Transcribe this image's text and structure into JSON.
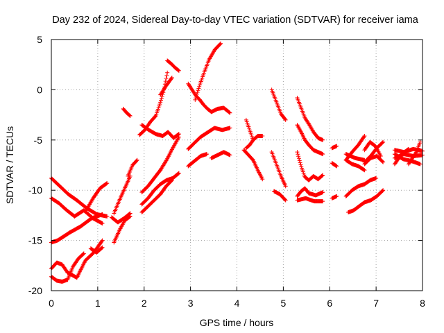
{
  "chart_data": {
    "type": "scatter",
    "title": "Day 232 of 2024, Sidereal Day-to-day VTEC variation (SDTVAR) for receiver iama",
    "xlabel": "GPS time / hours",
    "ylabel": "SDTVAR / TECUs",
    "xlim": [
      0,
      8
    ],
    "ylim": [
      -20,
      5
    ],
    "xticks": [
      0,
      1,
      2,
      3,
      4,
      5,
      6,
      7,
      8
    ],
    "yticks": [
      -20,
      -15,
      -10,
      -5,
      0,
      5
    ],
    "xtick_labels": [
      "0",
      "1",
      "2",
      "3",
      "4",
      "5",
      "6",
      "7",
      "8"
    ],
    "ytick_labels": [
      "-20",
      "-15",
      "-10",
      "-5",
      "0",
      "5"
    ],
    "grid": true,
    "marker": "+",
    "color": "#ff0000",
    "segments": [
      {
        "x0": 0.0,
        "x1": 0.55,
        "y": [
          -8.8,
          -9.6,
          -10.4,
          -11.0
        ]
      },
      {
        "x0": 0.55,
        "x1": 1.2,
        "y": [
          -11.0,
          -11.8,
          -12.4,
          -12.6
        ]
      },
      {
        "x0": 0.0,
        "x1": 0.5,
        "y": [
          -10.8,
          -11.3,
          -12.0,
          -12.6
        ]
      },
      {
        "x0": 0.5,
        "x1": 1.1,
        "y": [
          -12.6,
          -12.0,
          -12.8,
          -13.3
        ]
      },
      {
        "x0": 0.0,
        "x1": 0.4,
        "y": [
          -15.2,
          -15.0,
          -14.6,
          -14.2
        ]
      },
      {
        "x0": 0.4,
        "x1": 1.1,
        "y": [
          -14.2,
          -13.6,
          -12.8,
          -12.4
        ]
      },
      {
        "x0": 0.75,
        "x1": 1.2,
        "y": [
          -12.0,
          -10.8,
          -9.8,
          -9.3
        ]
      },
      {
        "x0": 0.0,
        "x1": 0.35,
        "y": [
          -17.8,
          -17.2,
          -17.4,
          -18.2
        ]
      },
      {
        "x0": 0.35,
        "x1": 0.55,
        "y": [
          -18.2,
          -18.7
        ]
      },
      {
        "x0": 0.0,
        "x1": 0.35,
        "y": [
          -18.6,
          -19.0,
          -19.1,
          -18.9
        ]
      },
      {
        "x0": 0.35,
        "x1": 0.7,
        "y": [
          -18.9,
          -17.6,
          -16.8,
          -16.3
        ]
      },
      {
        "x0": 0.55,
        "x1": 1.1,
        "y": [
          -18.7,
          -17.0,
          -16.2,
          -15.0
        ]
      },
      {
        "x0": 0.85,
        "x1": 1.1,
        "y": [
          -15.8,
          -16.2,
          -15.7
        ]
      },
      {
        "x0": 1.55,
        "x1": 1.7,
        "y": [
          -1.9,
          -2.3,
          -2.6
        ]
      },
      {
        "x0": 1.35,
        "x1": 1.7,
        "y": [
          -12.3,
          -11.0,
          -9.8,
          -8.6
        ]
      },
      {
        "x0": 1.65,
        "x1": 1.85,
        "y": [
          -8.6,
          -7.5,
          -7.0
        ]
      },
      {
        "x0": 1.3,
        "x1": 1.7,
        "y": [
          -12.7,
          -13.2,
          -12.8,
          -12.3
        ]
      },
      {
        "x0": 1.35,
        "x1": 1.7,
        "y": [
          -15.2,
          -14.0,
          -13.0,
          -12.6
        ]
      },
      {
        "x0": 1.9,
        "x1": 2.25,
        "y": [
          -4.5,
          -4.0,
          -3.2,
          -2.6
        ]
      },
      {
        "x0": 2.25,
        "x1": 2.5,
        "y": [
          -2.6,
          -1.5,
          -0.2,
          1.7
        ]
      },
      {
        "x0": 2.35,
        "x1": 2.6,
        "y": [
          -0.5,
          0.4,
          1.2
        ]
      },
      {
        "x0": 2.5,
        "x1": 2.75,
        "y": [
          2.9,
          2.6,
          2.2,
          1.9
        ]
      },
      {
        "x0": 1.95,
        "x1": 2.4,
        "y": [
          -3.5,
          -4.0,
          -4.4,
          -4.6
        ]
      },
      {
        "x0": 2.4,
        "x1": 2.75,
        "y": [
          -4.6,
          -4.2,
          -4.8,
          -4.4
        ]
      },
      {
        "x0": 1.95,
        "x1": 2.35,
        "y": [
          -10.2,
          -9.6,
          -8.8,
          -8.0
        ]
      },
      {
        "x0": 2.35,
        "x1": 2.75,
        "y": [
          -8.0,
          -7.0,
          -5.8,
          -4.7
        ]
      },
      {
        "x0": 1.95,
        "x1": 2.35,
        "y": [
          -11.4,
          -10.8,
          -10.0,
          -9.4
        ]
      },
      {
        "x0": 2.35,
        "x1": 2.75,
        "y": [
          -9.4,
          -9.0,
          -8.8,
          -8.3
        ]
      },
      {
        "x0": 1.95,
        "x1": 2.35,
        "y": [
          -12.2,
          -11.6,
          -11.0,
          -10.4
        ]
      },
      {
        "x0": 2.35,
        "x1": 2.6,
        "y": [
          -10.4,
          -9.6,
          -9.0
        ]
      },
      {
        "x0": 2.95,
        "x1": 3.2,
        "y": [
          0.6,
          0.0,
          -0.6,
          -1.0
        ]
      },
      {
        "x0": 3.2,
        "x1": 3.45,
        "y": [
          -1.0,
          -1.5,
          -1.9,
          -2.2
        ]
      },
      {
        "x0": 3.1,
        "x1": 3.4,
        "y": [
          -1.0,
          0.5,
          1.8,
          3.0
        ]
      },
      {
        "x0": 3.4,
        "x1": 3.65,
        "y": [
          3.0,
          4.0,
          4.6
        ]
      },
      {
        "x0": 3.45,
        "x1": 3.85,
        "y": [
          -2.2,
          -1.9,
          -1.8,
          -2.3
        ]
      },
      {
        "x0": 2.95,
        "x1": 3.35,
        "y": [
          -5.9,
          -5.3,
          -4.7,
          -4.3
        ]
      },
      {
        "x0": 3.35,
        "x1": 3.85,
        "y": [
          -4.3,
          -3.8,
          -4.0,
          -3.8
        ]
      },
      {
        "x0": 2.95,
        "x1": 3.35,
        "y": [
          -7.6,
          -7.1,
          -6.6,
          -6.4
        ]
      },
      {
        "x0": 3.45,
        "x1": 3.85,
        "y": [
          -6.8,
          -6.5,
          -6.2,
          -6.5
        ]
      },
      {
        "x0": 4.2,
        "x1": 4.35,
        "y": [
          -3.0,
          -4.0,
          -5.0
        ]
      },
      {
        "x0": 4.2,
        "x1": 4.35,
        "y": [
          -5.8,
          -5.5,
          -5.0
        ]
      },
      {
        "x0": 4.35,
        "x1": 4.55,
        "y": [
          -5.0,
          -4.6,
          -4.6
        ]
      },
      {
        "x0": 4.15,
        "x1": 4.35,
        "y": [
          -6.0,
          -6.5,
          -7.0
        ]
      },
      {
        "x0": 4.35,
        "x1": 4.55,
        "y": [
          -7.0,
          -8.0,
          -8.9
        ]
      },
      {
        "x0": 4.75,
        "x1": 5.05,
        "y": [
          0.0,
          -1.2,
          -2.4,
          -3.0
        ]
      },
      {
        "x0": 4.75,
        "x1": 5.05,
        "y": [
          -6.2,
          -7.4,
          -8.6,
          -9.6
        ]
      },
      {
        "x0": 4.8,
        "x1": 5.05,
        "y": [
          -10.1,
          -10.4,
          -11.0
        ]
      },
      {
        "x0": 5.3,
        "x1": 5.55,
        "y": [
          -0.8,
          -1.8,
          -2.8,
          -3.4
        ]
      },
      {
        "x0": 5.55,
        "x1": 5.85,
        "y": [
          -3.4,
          -4.2,
          -4.8,
          -5.0
        ]
      },
      {
        "x0": 5.3,
        "x1": 5.55,
        "y": [
          -3.5,
          -4.2,
          -5.0,
          -5.5
        ]
      },
      {
        "x0": 5.55,
        "x1": 5.85,
        "y": [
          -5.5,
          -6.0,
          -6.2,
          -6.4
        ]
      },
      {
        "x0": 5.3,
        "x1": 5.55,
        "y": [
          -6.2,
          -7.6,
          -8.7,
          -9.0
        ]
      },
      {
        "x0": 5.55,
        "x1": 5.85,
        "y": [
          -9.0,
          -8.6,
          -8.9,
          -8.5
        ]
      },
      {
        "x0": 5.3,
        "x1": 5.55,
        "y": [
          -10.6,
          -10.1,
          -9.8,
          -10.3
        ]
      },
      {
        "x0": 5.55,
        "x1": 5.85,
        "y": [
          -10.3,
          -10.5,
          -10.2
        ]
      },
      {
        "x0": 5.3,
        "x1": 5.85,
        "y": [
          -11.0,
          -10.8,
          -11.1,
          -11.1
        ]
      },
      {
        "x0": 6.05,
        "x1": 6.15,
        "y": [
          -5.8,
          -5.6
        ]
      },
      {
        "x0": 6.05,
        "x1": 6.15,
        "y": [
          -7.3,
          -7.6
        ]
      },
      {
        "x0": 6.05,
        "x1": 6.15,
        "y": [
          -10.8,
          -10.6
        ]
      },
      {
        "x0": 6.35,
        "x1": 6.75,
        "y": [
          -7.0,
          -6.2,
          -5.5,
          -4.6
        ]
      },
      {
        "x0": 6.35,
        "x1": 6.75,
        "y": [
          -6.4,
          -6.8,
          -7.0
        ]
      },
      {
        "x0": 6.75,
        "x1": 7.1,
        "y": [
          -6.0,
          -5.2,
          -5.6,
          -6.6
        ]
      },
      {
        "x0": 6.75,
        "x1": 7.15,
        "y": [
          -7.2,
          -6.6,
          -5.8,
          -5.2
        ]
      },
      {
        "x0": 6.35,
        "x1": 6.75,
        "y": [
          -7.0,
          -7.4,
          -7.6,
          -8.0
        ]
      },
      {
        "x0": 6.75,
        "x1": 7.15,
        "y": [
          -7.4,
          -6.8,
          -6.6,
          -7.2
        ]
      },
      {
        "x0": 6.35,
        "x1": 6.75,
        "y": [
          -10.6,
          -10.0,
          -9.6,
          -9.4
        ]
      },
      {
        "x0": 6.75,
        "x1": 7.0,
        "y": [
          -9.4,
          -9.0,
          -8.8
        ]
      },
      {
        "x0": 6.4,
        "x1": 6.75,
        "y": [
          -12.2,
          -12.0,
          -11.6,
          -11.2
        ]
      },
      {
        "x0": 6.75,
        "x1": 7.15,
        "y": [
          -11.2,
          -11.0,
          -10.6,
          -10.0
        ]
      },
      {
        "x0": 7.4,
        "x1": 8.0,
        "y": [
          -6.0,
          -6.2,
          -5.9,
          -6.1
        ]
      },
      {
        "x0": 7.4,
        "x1": 8.0,
        "y": [
          -6.8,
          -6.4,
          -6.6,
          -6.5
        ]
      },
      {
        "x0": 7.4,
        "x1": 7.7,
        "y": [
          -7.4,
          -6.4,
          -5.9
        ]
      },
      {
        "x0": 7.7,
        "x1": 7.95,
        "y": [
          -7.4,
          -6.8,
          -6.2,
          -5.2
        ]
      },
      {
        "x0": 7.4,
        "x1": 7.95,
        "y": [
          -6.4,
          -6.9,
          -7.1,
          -7.4
        ]
      }
    ]
  }
}
